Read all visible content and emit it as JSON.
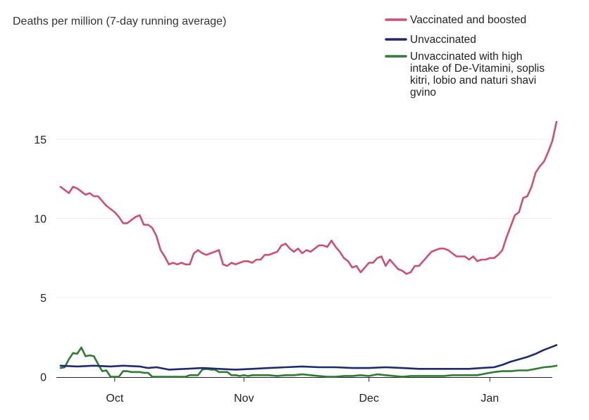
{
  "chart_data": {
    "type": "line",
    "title": "Deaths per million (7-day running average)",
    "xlabel": "",
    "ylabel": "",
    "x_tick_labels": [
      "Oct",
      "Nov",
      "Dec",
      "Jan"
    ],
    "x_tick_days": [
      13,
      44,
      74,
      103
    ],
    "x_range_days": [
      -1,
      118
    ],
    "y_ticks": [
      0,
      5,
      10,
      15
    ],
    "ylim": [
      0,
      16
    ],
    "grid": true,
    "legend_position": "top-right",
    "series": [
      {
        "name": "Vaccinated and boosted",
        "color": "#cf4f72",
        "knots": [
          [
            0,
            12
          ],
          [
            1,
            11.8
          ],
          [
            2,
            11.6
          ],
          [
            3,
            12
          ],
          [
            4,
            11.9
          ],
          [
            5,
            11.7
          ],
          [
            6,
            11.5
          ],
          [
            7,
            11.6
          ],
          [
            8,
            11.4
          ],
          [
            9,
            11.4
          ],
          [
            10,
            11.1
          ],
          [
            11,
            10.8
          ],
          [
            12,
            10.6
          ],
          [
            13,
            10.4
          ],
          [
            14,
            10.1
          ],
          [
            15,
            9.7
          ],
          [
            16,
            9.7
          ],
          [
            17,
            9.9
          ],
          [
            18,
            10.1
          ],
          [
            19,
            10.2
          ],
          [
            20,
            9.6
          ],
          [
            21,
            9.6
          ],
          [
            22,
            9.4
          ],
          [
            23,
            8.9
          ],
          [
            24,
            8
          ],
          [
            25,
            7.6
          ],
          [
            26,
            7.1
          ],
          [
            27,
            7.2
          ],
          [
            28,
            7.1
          ],
          [
            29,
            7.2
          ],
          [
            30,
            7.1
          ],
          [
            31,
            7.1
          ],
          [
            32,
            7.8
          ],
          [
            33,
            8
          ],
          [
            34,
            7.8
          ],
          [
            35,
            7.7
          ],
          [
            36,
            7.8
          ],
          [
            37,
            7.9
          ],
          [
            38,
            8
          ],
          [
            39,
            7.1
          ],
          [
            40,
            7
          ],
          [
            41,
            7.2
          ],
          [
            42,
            7.1
          ],
          [
            43,
            7.2
          ],
          [
            44,
            7.3
          ],
          [
            45,
            7.3
          ],
          [
            46,
            7.2
          ],
          [
            47,
            7.4
          ],
          [
            48,
            7.4
          ],
          [
            49,
            7.7
          ],
          [
            50,
            7.7
          ],
          [
            51,
            7.8
          ],
          [
            52,
            7.9
          ],
          [
            53,
            8.3
          ],
          [
            54,
            8.4
          ],
          [
            55,
            8.1
          ],
          [
            56,
            7.9
          ],
          [
            57,
            8.1
          ],
          [
            58,
            7.8
          ],
          [
            59,
            8
          ],
          [
            60,
            7.9
          ],
          [
            61,
            8.1
          ],
          [
            62,
            8.3
          ],
          [
            63,
            8.3
          ],
          [
            64,
            8.2
          ],
          [
            65,
            8.6
          ],
          [
            66,
            8.2
          ],
          [
            67,
            7.9
          ],
          [
            68,
            7.5
          ],
          [
            69,
            7.3
          ],
          [
            70,
            6.9
          ],
          [
            71,
            7
          ],
          [
            72,
            6.6
          ],
          [
            73,
            6.9
          ],
          [
            74,
            7.2
          ],
          [
            75,
            7.2
          ],
          [
            76,
            7.5
          ],
          [
            77,
            7.6
          ],
          [
            78,
            7
          ],
          [
            79,
            7.4
          ],
          [
            80,
            7.1
          ],
          [
            81,
            6.8
          ],
          [
            82,
            6.7
          ],
          [
            83,
            6.5
          ],
          [
            84,
            6.6
          ],
          [
            85,
            7
          ],
          [
            86,
            7
          ],
          [
            87,
            7.3
          ],
          [
            88,
            7.6
          ],
          [
            89,
            7.9
          ],
          [
            90,
            8
          ],
          [
            91,
            8.1
          ],
          [
            92,
            8.1
          ],
          [
            93,
            8
          ],
          [
            94,
            7.8
          ],
          [
            95,
            7.6
          ],
          [
            96,
            7.6
          ],
          [
            97,
            7.6
          ],
          [
            98,
            7.4
          ],
          [
            99,
            7.6
          ],
          [
            100,
            7.3
          ],
          [
            101,
            7.4
          ],
          [
            102,
            7.4
          ],
          [
            103,
            7.5
          ],
          [
            104,
            7.5
          ],
          [
            105,
            7.7
          ],
          [
            106,
            8
          ],
          [
            107,
            8.8
          ],
          [
            108,
            9.5
          ],
          [
            109,
            10.2
          ],
          [
            110,
            10.4
          ],
          [
            111,
            11.3
          ],
          [
            112,
            11.4
          ],
          [
            113,
            12
          ],
          [
            114,
            12.9
          ],
          [
            115,
            13.3
          ],
          [
            116,
            13.6
          ],
          [
            117,
            14.2
          ],
          [
            118,
            14.9
          ],
          [
            119,
            16.1
          ]
        ]
      },
      {
        "name": "Unvaccinated",
        "color": "#1e2a6e",
        "knots": [
          [
            0,
            0.7
          ],
          [
            4,
            0.65
          ],
          [
            8,
            0.7
          ],
          [
            12,
            0.65
          ],
          [
            15,
            0.7
          ],
          [
            19,
            0.65
          ],
          [
            21,
            0.55
          ],
          [
            23,
            0.6
          ],
          [
            26,
            0.45
          ],
          [
            30,
            0.5
          ],
          [
            34,
            0.55
          ],
          [
            38,
            0.5
          ],
          [
            42,
            0.45
          ],
          [
            46,
            0.5
          ],
          [
            50,
            0.55
          ],
          [
            54,
            0.6
          ],
          [
            58,
            0.65
          ],
          [
            62,
            0.6
          ],
          [
            66,
            0.6
          ],
          [
            70,
            0.55
          ],
          [
            74,
            0.55
          ],
          [
            78,
            0.6
          ],
          [
            82,
            0.55
          ],
          [
            86,
            0.5
          ],
          [
            90,
            0.5
          ],
          [
            94,
            0.5
          ],
          [
            98,
            0.5
          ],
          [
            101,
            0.55
          ],
          [
            104,
            0.6
          ],
          [
            106,
            0.75
          ],
          [
            108,
            0.95
          ],
          [
            110,
            1.1
          ],
          [
            112,
            1.25
          ],
          [
            114,
            1.45
          ],
          [
            116,
            1.7
          ],
          [
            118,
            1.9
          ],
          [
            119,
            2
          ]
        ]
      },
      {
        "name": "Unvaccinated with high intake of De-Vitamini, soplis kitri, lobio and naturi shavi gvino",
        "color": "#2e7d32",
        "knots": [
          [
            0,
            0.55
          ],
          [
            1,
            0.6
          ],
          [
            2,
            1.1
          ],
          [
            3,
            1.5
          ],
          [
            4,
            1.45
          ],
          [
            5,
            1.85
          ],
          [
            6,
            1.3
          ],
          [
            7,
            1.35
          ],
          [
            8,
            1.3
          ],
          [
            9,
            0.8
          ],
          [
            10,
            0.35
          ],
          [
            11,
            0.4
          ],
          [
            12,
            0
          ],
          [
            13,
            0
          ],
          [
            14,
            0
          ],
          [
            15,
            0.35
          ],
          [
            16,
            0.35
          ],
          [
            17,
            0.3
          ],
          [
            18,
            0.3
          ],
          [
            19,
            0.3
          ],
          [
            20,
            0.25
          ],
          [
            21,
            0.25
          ],
          [
            22,
            0
          ],
          [
            23,
            0
          ],
          [
            24,
            0
          ],
          [
            25,
            0
          ],
          [
            26,
            0
          ],
          [
            27,
            0
          ],
          [
            28,
            0
          ],
          [
            29,
            0
          ],
          [
            30,
            0
          ],
          [
            31,
            0.1
          ],
          [
            32,
            0.1
          ],
          [
            33,
            0.1
          ],
          [
            34,
            0.45
          ],
          [
            35,
            0.5
          ],
          [
            36,
            0.45
          ],
          [
            37,
            0.45
          ],
          [
            38,
            0.3
          ],
          [
            39,
            0.3
          ],
          [
            40,
            0.3
          ],
          [
            41,
            0.1
          ],
          [
            42,
            0.1
          ],
          [
            43,
            0.05
          ],
          [
            44,
            0.1
          ],
          [
            45,
            0.05
          ],
          [
            46,
            0.1
          ],
          [
            48,
            0.1
          ],
          [
            50,
            0.1
          ],
          [
            52,
            0.05
          ],
          [
            54,
            0.1
          ],
          [
            56,
            0.1
          ],
          [
            58,
            0.15
          ],
          [
            60,
            0.1
          ],
          [
            62,
            0.05
          ],
          [
            64,
            0
          ],
          [
            66,
            0
          ],
          [
            68,
            0.05
          ],
          [
            70,
            0.05
          ],
          [
            72,
            0.1
          ],
          [
            74,
            0.05
          ],
          [
            76,
            0.15
          ],
          [
            78,
            0.1
          ],
          [
            80,
            0.05
          ],
          [
            82,
            0
          ],
          [
            84,
            0.05
          ],
          [
            86,
            0.05
          ],
          [
            88,
            0.05
          ],
          [
            90,
            0.05
          ],
          [
            92,
            0.05
          ],
          [
            94,
            0.1
          ],
          [
            96,
            0.1
          ],
          [
            98,
            0.1
          ],
          [
            100,
            0.1
          ],
          [
            102,
            0.2
          ],
          [
            104,
            0.3
          ],
          [
            106,
            0.35
          ],
          [
            108,
            0.35
          ],
          [
            110,
            0.4
          ],
          [
            112,
            0.4
          ],
          [
            114,
            0.5
          ],
          [
            116,
            0.6
          ],
          [
            118,
            0.65
          ],
          [
            119,
            0.7
          ]
        ]
      }
    ]
  }
}
